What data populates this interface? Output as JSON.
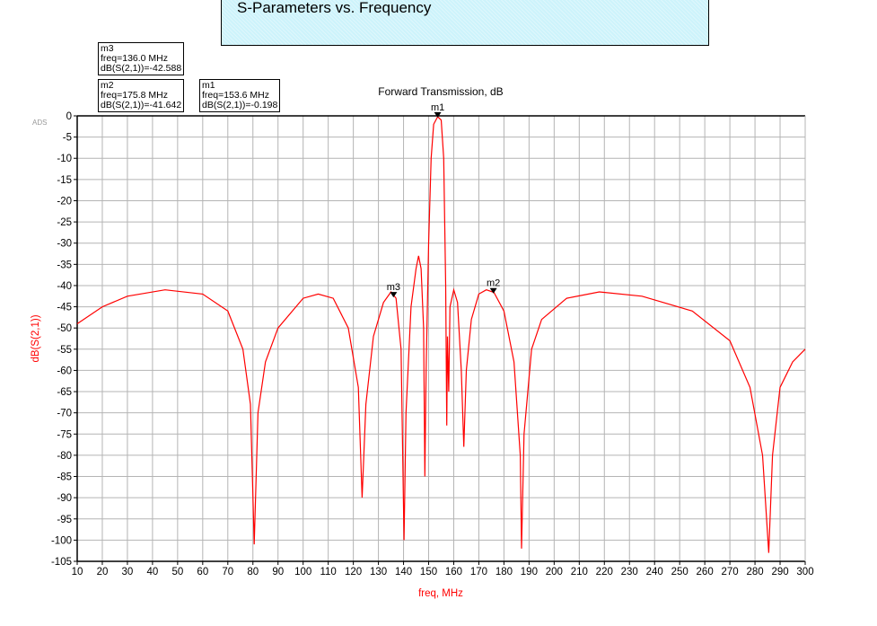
{
  "window_title": "S-Parameters vs. Frequency",
  "watermark": "ADS",
  "markers": [
    {
      "name": "m1",
      "freq_label": "freq=153.6 MHz",
      "value_label": "dB(S(2,1))=-0.198",
      "freq": 153.6,
      "db": -0.198
    },
    {
      "name": "m2",
      "freq_label": "freq=175.8 MHz",
      "value_label": "dB(S(2,1))=-41.642",
      "freq": 175.8,
      "db": -41.642
    },
    {
      "name": "m3",
      "freq_label": "freq=136.0 MHz",
      "value_label": "dB(S(2,1))=-42.588",
      "freq": 136.0,
      "db": -42.588
    }
  ],
  "chart_data": {
    "type": "line",
    "title": "Forward Transmission, dB",
    "xlabel": "freq, MHz",
    "ylabel": "dB(S(2,1))",
    "xlim": [
      10,
      300
    ],
    "ylim": [
      -105,
      0
    ],
    "xticks": [
      10,
      20,
      30,
      40,
      50,
      60,
      70,
      80,
      90,
      100,
      110,
      120,
      130,
      140,
      150,
      160,
      170,
      180,
      190,
      200,
      210,
      220,
      230,
      240,
      250,
      260,
      270,
      280,
      290,
      300
    ],
    "yticks": [
      0,
      -5,
      -10,
      -15,
      -20,
      -25,
      -30,
      -35,
      -40,
      -45,
      -50,
      -55,
      -60,
      -65,
      -70,
      -75,
      -80,
      -85,
      -90,
      -95,
      -100,
      -105
    ],
    "grid": true,
    "series": [
      {
        "name": "dB(S(2,1))",
        "color": "#ff0000",
        "x": [
          10,
          20,
          30,
          45,
          60,
          70,
          76,
          79,
          80.5,
          82,
          85,
          90,
          100,
          106,
          112,
          118,
          122,
          123.5,
          125,
          128,
          132,
          135,
          137,
          139,
          140.2,
          141,
          143,
          145,
          146,
          147,
          148,
          148.5,
          149,
          150,
          151,
          152,
          153.6,
          155,
          156,
          156.8,
          157.2,
          157.5,
          158,
          158.5,
          160,
          161.5,
          163,
          164,
          165,
          167,
          170,
          173,
          176,
          180,
          184,
          186.5,
          187,
          188,
          191,
          195,
          205,
          218,
          235,
          255,
          270,
          278,
          283,
          285.5,
          287,
          290,
          295,
          300
        ],
        "y": [
          -49,
          -45,
          -42.5,
          -41,
          -42,
          -46,
          -55,
          -68,
          -101,
          -70,
          -58,
          -50,
          -43,
          -42,
          -43,
          -50,
          -64,
          -90,
          -68,
          -52,
          -44,
          -41.5,
          -43,
          -55,
          -100,
          -70,
          -45,
          -36,
          -33,
          -36,
          -50,
          -85,
          -60,
          -30,
          -10,
          -2,
          -0.2,
          -1,
          -10,
          -40,
          -73,
          -52,
          -65,
          -45,
          -41,
          -44,
          -60,
          -78,
          -60,
          -48,
          -42,
          -41,
          -41.6,
          -46,
          -58,
          -80,
          -102,
          -75,
          -55,
          -48,
          -43,
          -41.5,
          -42.5,
          -46,
          -53,
          -64,
          -80,
          -103,
          -80,
          -64,
          -58,
          -55
        ]
      }
    ]
  }
}
